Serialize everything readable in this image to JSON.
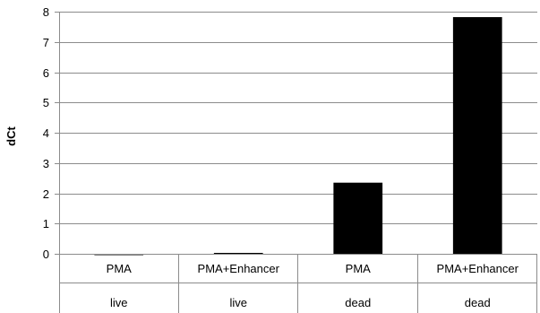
{
  "chart_data": {
    "type": "bar",
    "title": "",
    "xlabel": "",
    "ylabel": "dCt",
    "ylim": [
      0,
      8
    ],
    "yticks": [
      0,
      1,
      2,
      3,
      4,
      5,
      6,
      7,
      8
    ],
    "grid": true,
    "legend": "none",
    "bar_color": "#000000",
    "categories": [
      {
        "top": "PMA",
        "bottom": "live"
      },
      {
        "top": "PMA+Enhancer",
        "bottom": "live"
      },
      {
        "top": "PMA",
        "bottom": "dead"
      },
      {
        "top": "PMA+Enhancer",
        "bottom": "dead"
      }
    ],
    "values": [
      -0.03,
      0.03,
      2.35,
      7.82
    ]
  }
}
